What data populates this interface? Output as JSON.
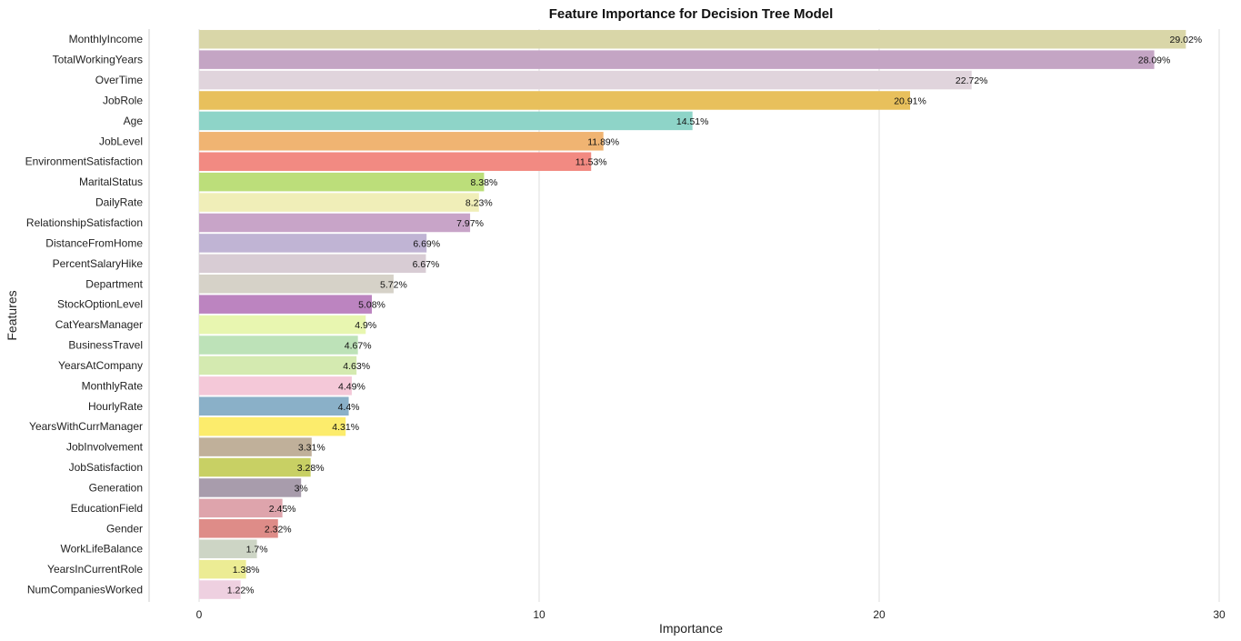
{
  "chart_data": {
    "type": "bar",
    "orientation": "horizontal",
    "title": "Feature Importance for Decision Tree Model",
    "xlabel": "Importance",
    "ylabel": "Features",
    "xlim": [
      0,
      30
    ],
    "xticks": [
      "0",
      "10",
      "20",
      "30"
    ],
    "grid": "vertical",
    "categories": [
      "MonthlyIncome",
      "TotalWorkingYears",
      "OverTime",
      "JobRole",
      "Age",
      "JobLevel",
      "EnvironmentSatisfaction",
      "MaritalStatus",
      "DailyRate",
      "RelationshipSatisfaction",
      "DistanceFromHome",
      "PercentSalaryHike",
      "Department",
      "StockOptionLevel",
      "CatYearsManager",
      "BusinessTravel",
      "YearsAtCompany",
      "MonthlyRate",
      "HourlyRate",
      "YearsWithCurrManager",
      "JobInvolvement",
      "JobSatisfaction",
      "Generation",
      "EducationField",
      "Gender",
      "WorkLifeBalance",
      "YearsInCurrentRole",
      "NumCompaniesWorked"
    ],
    "values": [
      29.02,
      28.09,
      22.72,
      20.91,
      14.51,
      11.89,
      11.53,
      8.38,
      8.23,
      7.97,
      6.69,
      6.67,
      5.72,
      5.08,
      4.9,
      4.67,
      4.63,
      4.49,
      4.4,
      4.31,
      3.31,
      3.28,
      3,
      2.45,
      2.32,
      1.7,
      1.38,
      1.22
    ],
    "data_labels": [
      "29.02%",
      "28.09%",
      "22.72%",
      "20.91%",
      "14.51%",
      "11.89%",
      "11.53%",
      "8.38%",
      "8.23%",
      "7.97%",
      "6.69%",
      "6.67%",
      "5.72%",
      "5.08%",
      "4.9%",
      "4.67%",
      "4.63%",
      "4.49%",
      "4.4%",
      "4.31%",
      "3.31%",
      "3.28%",
      "3%",
      "2.45%",
      "2.32%",
      "1.7%",
      "1.38%",
      "1.22%"
    ],
    "colors": [
      "#d9d6a8",
      "#c4a5c4",
      "#e0d4dc",
      "#e8c05c",
      "#8ed4c8",
      "#f0b472",
      "#f28a82",
      "#bcde7a",
      "#f0eeb8",
      "#c8a4c8",
      "#c0b4d4",
      "#d8ccd4",
      "#d6d2c8",
      "#bc84c0",
      "#e8f6b0",
      "#bde2b8",
      "#d4eab0",
      "#f4c8d8",
      "#8ab0c8",
      "#fcec6c",
      "#c0b09a",
      "#c8d064",
      "#a89cac",
      "#dea4ac",
      "#de8c88",
      "#cdd5c5",
      "#ecec94",
      "#eed0e0"
    ]
  }
}
